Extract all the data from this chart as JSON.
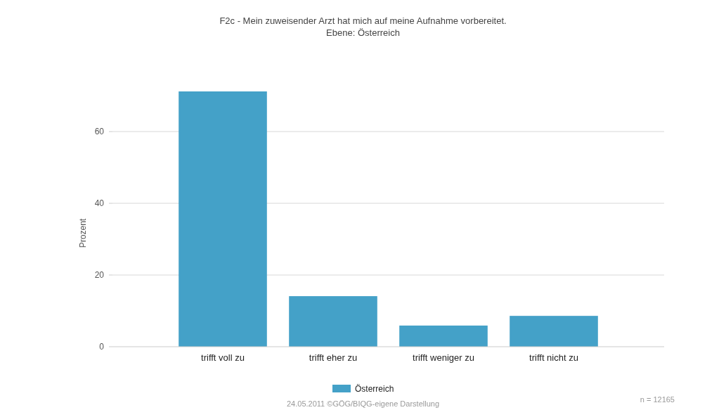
{
  "chart_data": {
    "type": "bar",
    "title": "F2c - Mein zuweisender Arzt hat mich auf meine Aufnahme vorbereitet.",
    "subtitle": "Ebene: Österreich",
    "ylabel": "Prozent",
    "categories": [
      "trifft voll zu",
      "trifft eher zu",
      "trifft weniger zu",
      "trifft nicht zu"
    ],
    "series": [
      {
        "name": "Österreich",
        "color": "#44a1c8",
        "values": [
          71.2,
          14.1,
          5.9,
          8.6
        ]
      }
    ],
    "ylim": [
      0,
      71.2
    ],
    "yticks": [
      0,
      20,
      40,
      60
    ],
    "grid": "y",
    "legend": "bottom",
    "annotations": [
      "24.05.2011 ©GÖG/BIQG-eigene Darstellung",
      "n = 12165"
    ]
  }
}
